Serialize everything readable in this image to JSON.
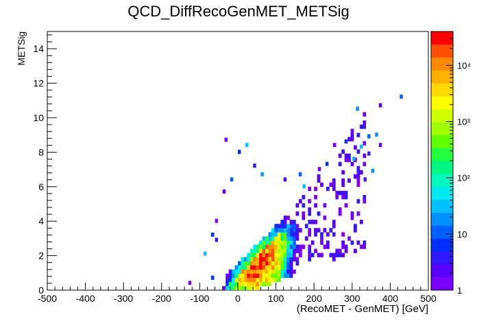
{
  "chart_data": {
    "type": "heatmap",
    "title": "QCD_DiffRecoGenMET_METSig",
    "xlabel": "(RecoMET - GenMET)  [GeV]",
    "ylabel": "METSig",
    "xlim": [
      -500,
      500
    ],
    "ylim": [
      0,
      15
    ],
    "x_ticks": [
      -500,
      -400,
      -300,
      -200,
      -100,
      0,
      100,
      200,
      300,
      400,
      500
    ],
    "x_tick_labels": [
      "-500",
      "-400",
      "-300",
      "-200",
      "-100",
      "0",
      "100",
      "200",
      "300",
      "400",
      "500"
    ],
    "y_ticks": [
      0,
      2,
      4,
      6,
      8,
      10,
      12,
      14
    ],
    "y_tick_labels": [
      "0",
      "2",
      "4",
      "6",
      "8",
      "10",
      "12",
      "14"
    ],
    "colorbar": {
      "scale": "log",
      "range": [
        1,
        40000
      ],
      "tick_values": [
        1,
        10,
        100,
        1000,
        10000
      ],
      "tick_labels": [
        "1",
        "10",
        "10²",
        "10³",
        "10⁴"
      ]
    },
    "grid": false,
    "distribution_notes": "Dense wedge of entries starting near (0,0), upper edge rising roughly with y = x/45 + 1 and a lower edge near y = x/120; peak density (~10^4) around x 40-90 GeV, y 1-2.5; sparse outliers up to x ~ 430 GeV, y ~ 11."
  }
}
